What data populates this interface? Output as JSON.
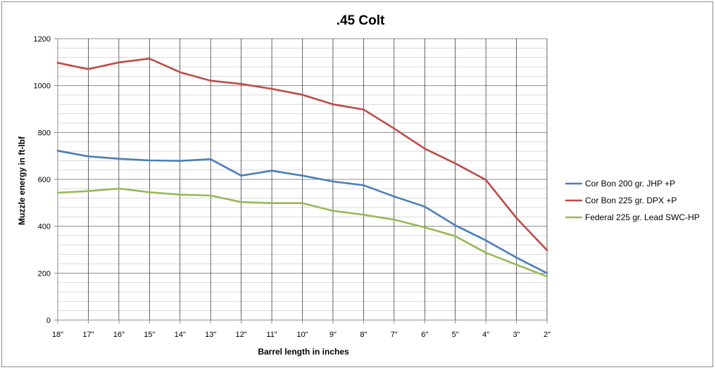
{
  "chart_data": {
    "type": "line",
    "title": ".45 Colt",
    "xlabel": "Barrel length in inches",
    "ylabel": "Muzzle energy in ft-lbf",
    "ylim": [
      0,
      1200
    ],
    "y_major_step": 200,
    "y_minor_step": 40,
    "grid": true,
    "legend_position": "right",
    "categories": [
      "18\"",
      "17\"",
      "16\"",
      "15\"",
      "14\"",
      "13\"",
      "12\"",
      "11\"",
      "10\"",
      "9\"",
      "8\"",
      "7\"",
      "6\"",
      "5\"",
      "4\"",
      "3\"",
      "2\""
    ],
    "series": [
      {
        "name": "Cor Bon 200 gr. JHP +P",
        "color": "#4a7ebb",
        "values": [
          722,
          698,
          688,
          681,
          679,
          686,
          616,
          637,
          616,
          591,
          575,
          527,
          484,
          404,
          340,
          266,
          200
        ]
      },
      {
        "name": "Cor Bon 225 gr. DPX +P",
        "color": "#be4b48",
        "values": [
          1097,
          1070,
          1099,
          1115,
          1057,
          1021,
          1007,
          986,
          961,
          920,
          898,
          817,
          731,
          668,
          598,
          435,
          298
        ]
      },
      {
        "name": "Federal 225 gr. Lead SWC-HP",
        "color": "#98b954",
        "values": [
          543,
          550,
          561,
          545,
          535,
          531,
          503,
          499,
          499,
          466,
          449,
          428,
          395,
          358,
          287,
          236,
          186
        ]
      }
    ]
  }
}
